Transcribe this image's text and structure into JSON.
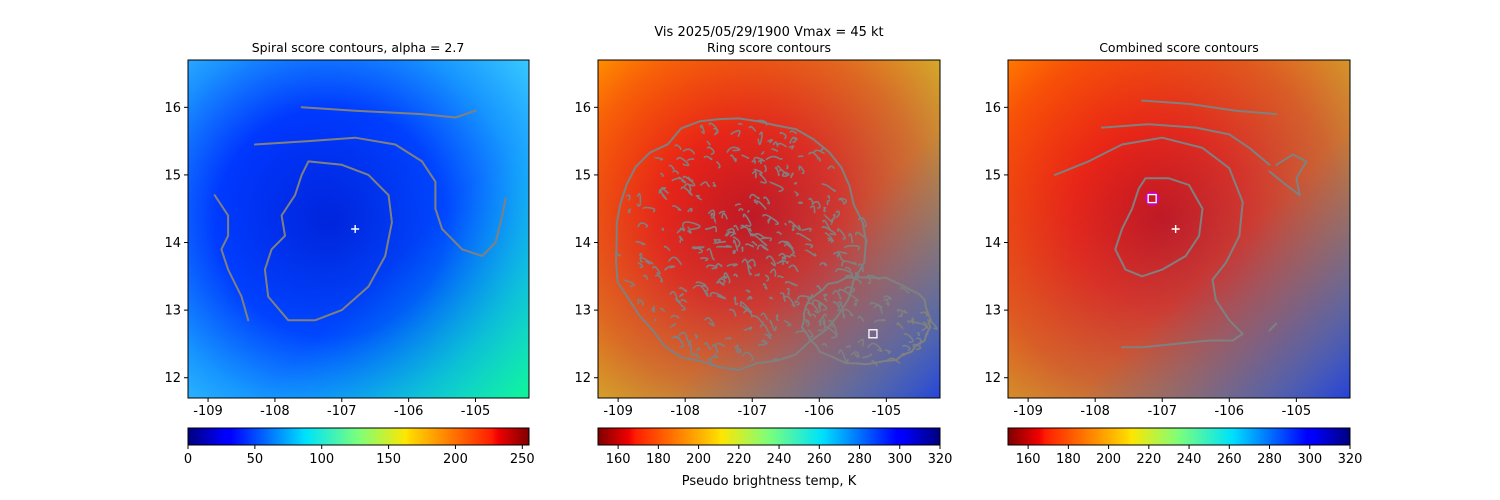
{
  "figure": {
    "suptitle_line1": "Vis  2025/05/29/1900    Vmax = 45 kt",
    "colors": {
      "contour": "#808080",
      "center_marker": "#ffffff",
      "circle_marker": "#cc00cc"
    }
  },
  "chart_data": [
    {
      "type": "heatmap",
      "title": "Spiral score contours, alpha =  2.7",
      "colormap": "jet",
      "xlim": [
        -109.3,
        -104.2
      ],
      "ylim": [
        11.7,
        16.7
      ],
      "xticks": [
        "-109",
        "-108",
        "-107",
        "-106",
        "-105"
      ],
      "xtick_values": [
        -109,
        -108,
        -107,
        -106,
        -105
      ],
      "yticks": [
        "12",
        "13",
        "14",
        "15",
        "16"
      ],
      "ytick_values": [
        12,
        13,
        14,
        15,
        16
      ],
      "colorbar": {
        "ticks": [
          "0",
          "50",
          "100",
          "150",
          "200",
          "250"
        ],
        "tick_values": [
          0,
          50,
          100,
          150,
          200,
          250
        ],
        "range": [
          0,
          255
        ],
        "reversed": false,
        "label": ""
      },
      "markers": [
        {
          "type": "plus",
          "x": -106.8,
          "y": 14.2
        }
      ],
      "contours": [
        [
          [
            -107.6,
            16.0
          ],
          [
            -106.8,
            15.95
          ],
          [
            -105.8,
            15.9
          ],
          [
            -105.3,
            15.85
          ],
          [
            -105.0,
            15.95
          ]
        ],
        [
          [
            -108.3,
            15.45
          ],
          [
            -107.5,
            15.5
          ],
          [
            -106.8,
            15.55
          ],
          [
            -106.2,
            15.45
          ],
          [
            -105.8,
            15.2
          ],
          [
            -105.6,
            14.9
          ],
          [
            -105.6,
            14.5
          ],
          [
            -105.5,
            14.2
          ],
          [
            -105.2,
            13.9
          ],
          [
            -104.9,
            13.8
          ],
          [
            -104.7,
            14.0
          ],
          [
            -104.6,
            14.4
          ],
          [
            -104.55,
            14.65
          ]
        ],
        [
          [
            -107.5,
            15.2
          ],
          [
            -107.0,
            15.15
          ],
          [
            -106.6,
            15.0
          ],
          [
            -106.3,
            14.7
          ],
          [
            -106.25,
            14.3
          ],
          [
            -106.35,
            13.8
          ],
          [
            -106.6,
            13.35
          ],
          [
            -107.0,
            13.0
          ],
          [
            -107.4,
            12.85
          ],
          [
            -107.8,
            12.85
          ],
          [
            -108.1,
            13.2
          ],
          [
            -108.15,
            13.6
          ],
          [
            -108.05,
            13.9
          ],
          [
            -107.85,
            14.1
          ],
          [
            -107.9,
            14.4
          ],
          [
            -107.7,
            14.7
          ],
          [
            -107.6,
            15.0
          ],
          [
            -107.5,
            15.2
          ]
        ],
        [
          [
            -108.9,
            14.7
          ],
          [
            -108.7,
            14.4
          ],
          [
            -108.7,
            14.1
          ],
          [
            -108.8,
            13.9
          ],
          [
            -108.7,
            13.6
          ],
          [
            -108.5,
            13.2
          ],
          [
            -108.4,
            12.85
          ]
        ]
      ]
    },
    {
      "type": "heatmap",
      "title": "Ring score contours",
      "colormap": "jet_r",
      "xlim": [
        -109.3,
        -104.2
      ],
      "ylim": [
        11.7,
        16.7
      ],
      "xticks": [
        "-109",
        "-108",
        "-107",
        "-106",
        "-105"
      ],
      "xtick_values": [
        -109,
        -108,
        -107,
        -106,
        -105
      ],
      "yticks": [
        "12",
        "13",
        "14",
        "15",
        "16"
      ],
      "ytick_values": [
        12,
        13,
        14,
        15,
        16
      ],
      "colorbar": {
        "ticks": [
          "160",
          "180",
          "200",
          "220",
          "240",
          "260",
          "280",
          "300",
          "320"
        ],
        "tick_values": [
          160,
          180,
          200,
          220,
          240,
          260,
          280,
          300,
          320
        ],
        "range": [
          150,
          320
        ],
        "reversed": true,
        "label": "Pseudo brightness temp, K"
      },
      "markers": [
        {
          "type": "square",
          "x": -105.2,
          "y": 12.65
        }
      ],
      "contour_regions": [
        {
          "cx": -107.2,
          "cy": 14.0,
          "rx": 1.85,
          "ry": 1.85
        },
        {
          "cx": -105.3,
          "cy": 12.85,
          "rx": 0.95,
          "ry": 0.65
        }
      ]
    },
    {
      "type": "heatmap",
      "title": "Combined score contours",
      "colormap": "jet_r",
      "xlim": [
        -109.3,
        -104.2
      ],
      "ylim": [
        11.7,
        16.7
      ],
      "xticks": [
        "-109",
        "-108",
        "-107",
        "-106",
        "-105"
      ],
      "xtick_values": [
        -109,
        -108,
        -107,
        -106,
        -105
      ],
      "yticks": [
        "12",
        "13",
        "14",
        "15",
        "16"
      ],
      "ytick_values": [
        12,
        13,
        14,
        15,
        16
      ],
      "colorbar": {
        "ticks": [
          "160",
          "180",
          "200",
          "220",
          "240",
          "260",
          "280",
          "300",
          "320"
        ],
        "tick_values": [
          160,
          180,
          200,
          220,
          240,
          260,
          280,
          300,
          320
        ],
        "range": [
          150,
          320
        ],
        "reversed": true,
        "label": ""
      },
      "markers": [
        {
          "type": "plus",
          "x": -106.8,
          "y": 14.2
        },
        {
          "type": "circle",
          "x": -107.15,
          "y": 14.65
        },
        {
          "type": "square",
          "x": -107.15,
          "y": 14.65
        }
      ],
      "contours": [
        [
          [
            -107.3,
            16.1
          ],
          [
            -106.6,
            16.05
          ],
          [
            -105.9,
            15.95
          ],
          [
            -105.3,
            15.9
          ]
        ],
        [
          [
            -107.9,
            15.7
          ],
          [
            -107.2,
            15.75
          ],
          [
            -106.5,
            15.7
          ],
          [
            -106.0,
            15.6
          ],
          [
            -105.7,
            15.4
          ],
          [
            -105.4,
            15.15
          ]
        ],
        [
          [
            -108.6,
            15.0
          ],
          [
            -108.1,
            15.2
          ],
          [
            -107.6,
            15.45
          ],
          [
            -107.0,
            15.55
          ],
          [
            -106.4,
            15.4
          ],
          [
            -106.0,
            15.1
          ],
          [
            -105.8,
            14.6
          ],
          [
            -105.85,
            14.1
          ],
          [
            -106.05,
            13.7
          ],
          [
            -106.25,
            13.45
          ],
          [
            -106.2,
            13.15
          ],
          [
            -106.0,
            12.85
          ],
          [
            -105.8,
            12.65
          ],
          [
            -105.95,
            12.55
          ],
          [
            -106.3,
            12.55
          ],
          [
            -106.8,
            12.5
          ],
          [
            -107.3,
            12.45
          ],
          [
            -107.6,
            12.45
          ]
        ],
        [
          [
            -107.25,
            14.95
          ],
          [
            -106.9,
            14.95
          ],
          [
            -106.6,
            14.85
          ],
          [
            -106.4,
            14.5
          ],
          [
            -106.45,
            14.1
          ],
          [
            -106.65,
            13.8
          ],
          [
            -107.0,
            13.6
          ],
          [
            -107.3,
            13.5
          ],
          [
            -107.55,
            13.6
          ],
          [
            -107.7,
            13.9
          ],
          [
            -107.6,
            14.2
          ],
          [
            -107.45,
            14.5
          ],
          [
            -107.35,
            14.8
          ],
          [
            -107.25,
            14.95
          ]
        ],
        [
          [
            -105.3,
            15.15
          ],
          [
            -105.05,
            15.3
          ],
          [
            -104.85,
            15.2
          ],
          [
            -105.0,
            14.95
          ],
          [
            -104.95,
            14.7
          ],
          [
            -105.15,
            14.85
          ],
          [
            -105.4,
            15.05
          ]
        ],
        [
          [
            -105.4,
            12.7
          ],
          [
            -105.3,
            12.8
          ]
        ]
      ]
    }
  ]
}
